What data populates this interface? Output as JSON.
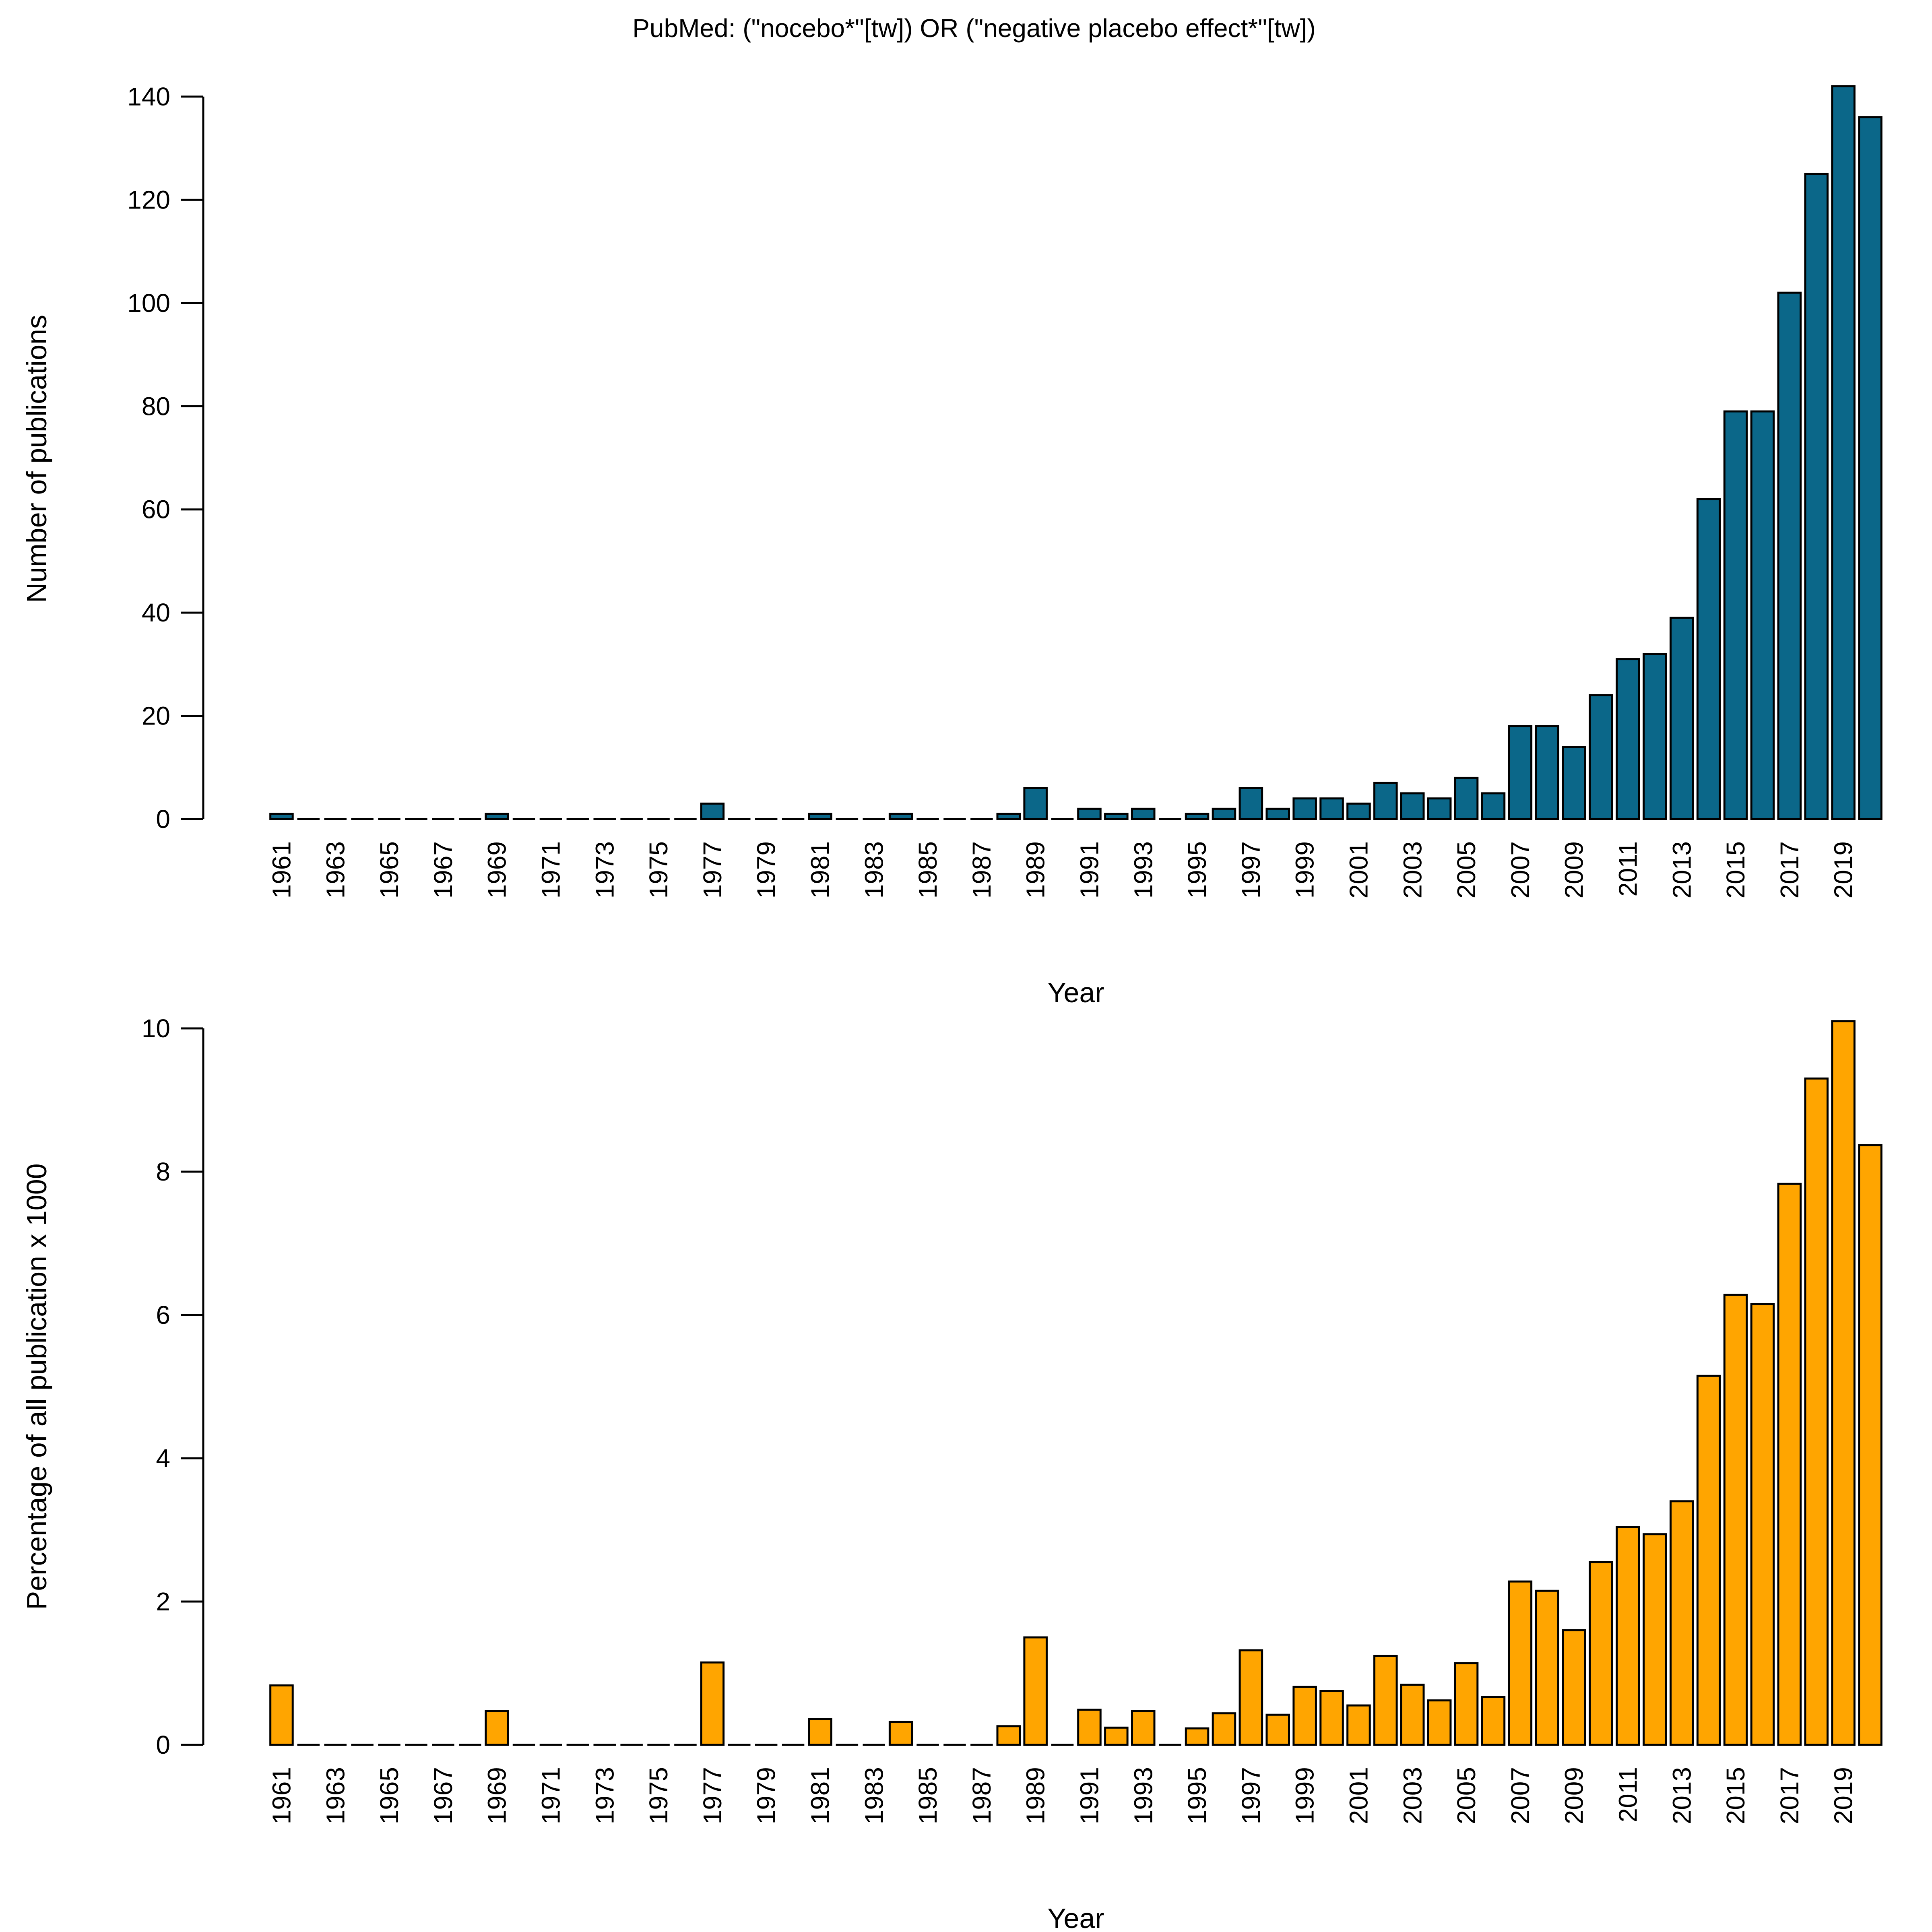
{
  "title": "PubMed: (\"nocebo*\"[tw]) OR (\"negative placebo effect*\"[tw])",
  "colors": {
    "top_bar": "#0b6789",
    "bottom_bar": "#ffa500",
    "outline": "#000000"
  },
  "chart_data": [
    {
      "type": "bar",
      "xlabel": "Year",
      "ylabel": "Number of publications",
      "ylim": [
        0,
        140
      ],
      "yticks": [
        0,
        20,
        40,
        60,
        80,
        100,
        120,
        140
      ],
      "categories": [
        "1961",
        "1962",
        "1963",
        "1964",
        "1965",
        "1966",
        "1967",
        "1968",
        "1969",
        "1970",
        "1971",
        "1972",
        "1973",
        "1974",
        "1975",
        "1976",
        "1977",
        "1978",
        "1979",
        "1980",
        "1981",
        "1982",
        "1983",
        "1984",
        "1985",
        "1986",
        "1987",
        "1988",
        "1989",
        "1990",
        "1991",
        "1992",
        "1993",
        "1994",
        "1995",
        "1996",
        "1997",
        "1998",
        "1999",
        "2000",
        "2001",
        "2002",
        "2003",
        "2004",
        "2005",
        "2006",
        "2007",
        "2008",
        "2009",
        "2010",
        "2011",
        "2012",
        "2013",
        "2014",
        "2015",
        "2016",
        "2017",
        "2018",
        "2019",
        "2020"
      ],
      "tick_labels": [
        "1961",
        "1963",
        "1965",
        "1967",
        "1969",
        "1971",
        "1973",
        "1975",
        "1977",
        "1979",
        "1981",
        "1983",
        "1985",
        "1987",
        "1989",
        "1991",
        "1993",
        "1995",
        "1997",
        "1999",
        "2001",
        "2003",
        "2005",
        "2007",
        "2009",
        "2011",
        "2013",
        "2015",
        "2017",
        "2019"
      ],
      "values": [
        1,
        0,
        0,
        0,
        0,
        0,
        0,
        0,
        1,
        0,
        0,
        0,
        0,
        0,
        0,
        0,
        3,
        0,
        0,
        0,
        1,
        0,
        0,
        1,
        0,
        0,
        0,
        1,
        6,
        0,
        2,
        1,
        2,
        0,
        1,
        2,
        6,
        2,
        4,
        4,
        3,
        7,
        5,
        4,
        8,
        5,
        18,
        18,
        14,
        24,
        31,
        32,
        39,
        62,
        79,
        79,
        102,
        125,
        142,
        136
      ],
      "grid": false
    },
    {
      "type": "bar",
      "xlabel": "Year",
      "ylabel": "Percentage of all publication x 1000",
      "ylim": [
        0,
        10
      ],
      "yticks": [
        0,
        2,
        4,
        6,
        8,
        10
      ],
      "categories": [
        "1961",
        "1962",
        "1963",
        "1964",
        "1965",
        "1966",
        "1967",
        "1968",
        "1969",
        "1970",
        "1971",
        "1972",
        "1973",
        "1974",
        "1975",
        "1976",
        "1977",
        "1978",
        "1979",
        "1980",
        "1981",
        "1982",
        "1983",
        "1984",
        "1985",
        "1986",
        "1987",
        "1988",
        "1989",
        "1990",
        "1991",
        "1992",
        "1993",
        "1994",
        "1995",
        "1996",
        "1997",
        "1998",
        "1999",
        "2000",
        "2001",
        "2002",
        "2003",
        "2004",
        "2005",
        "2006",
        "2007",
        "2008",
        "2009",
        "2010",
        "2011",
        "2012",
        "2013",
        "2014",
        "2015",
        "2016",
        "2017",
        "2018",
        "2019",
        "2020"
      ],
      "tick_labels": [
        "1961",
        "1963",
        "1965",
        "1967",
        "1969",
        "1971",
        "1973",
        "1975",
        "1977",
        "1979",
        "1981",
        "1983",
        "1985",
        "1987",
        "1989",
        "1991",
        "1993",
        "1995",
        "1997",
        "1999",
        "2001",
        "2003",
        "2005",
        "2007",
        "2009",
        "2011",
        "2013",
        "2015",
        "2017",
        "2019"
      ],
      "values": [
        0.83,
        0,
        0,
        0,
        0,
        0,
        0,
        0,
        0.47,
        0,
        0,
        0,
        0,
        0,
        0,
        0,
        1.15,
        0,
        0,
        0,
        0.36,
        0,
        0,
        0.32,
        0,
        0,
        0,
        0.26,
        1.5,
        0,
        0.49,
        0.24,
        0.47,
        0,
        0.23,
        0.44,
        1.32,
        0.42,
        0.81,
        0.75,
        0.55,
        1.24,
        0.84,
        0.62,
        1.14,
        0.67,
        2.28,
        2.15,
        1.6,
        2.55,
        3.04,
        2.94,
        3.4,
        5.15,
        6.28,
        6.15,
        7.83,
        9.3,
        10.1,
        8.37
      ],
      "grid": false
    }
  ]
}
